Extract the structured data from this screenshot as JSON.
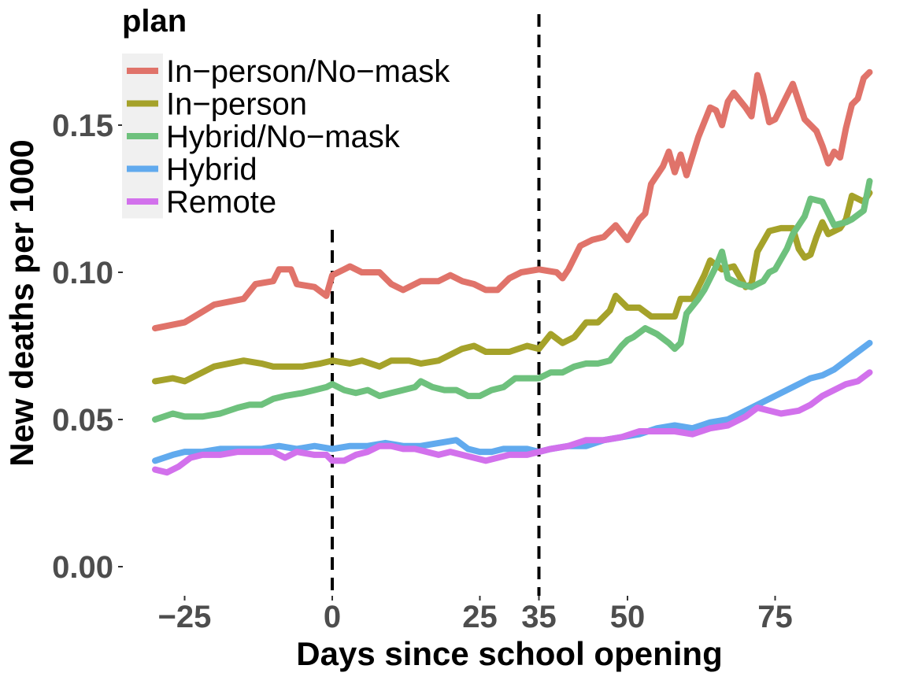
{
  "chart_data": {
    "type": "line",
    "title": "",
    "xlabel": "Days since school opening",
    "ylabel": "New deaths per 1000",
    "xlim": [
      -32,
      92
    ],
    "ylim": [
      -0.01,
      0.186
    ],
    "x_ticks": [
      -25,
      0,
      25,
      35,
      50,
      75
    ],
    "x_tick_labels": [
      "−25",
      "0",
      "25",
      "35",
      "50",
      "75"
    ],
    "y_ticks": [
      0.0,
      0.05,
      0.1,
      0.15
    ],
    "y_tick_labels": [
      "0.00",
      "0.05",
      "0.10",
      "0.15"
    ],
    "vlines": [
      0,
      35
    ],
    "grid": false,
    "legend": {
      "title": "plan",
      "placement": "top-left"
    },
    "series": [
      {
        "name": "In−person/No−mask",
        "color": "#e0736a",
        "points": [
          [
            -30,
            0.081
          ],
          [
            -25,
            0.083
          ],
          [
            -20,
            0.089
          ],
          [
            -15,
            0.091
          ],
          [
            -13,
            0.096
          ],
          [
            -10,
            0.097
          ],
          [
            -9,
            0.101
          ],
          [
            -7,
            0.101
          ],
          [
            -6,
            0.096
          ],
          [
            -3,
            0.095
          ],
          [
            -1,
            0.092
          ],
          [
            0,
            0.099
          ],
          [
            2,
            0.101
          ],
          [
            3,
            0.102
          ],
          [
            5,
            0.1
          ],
          [
            8,
            0.1
          ],
          [
            10,
            0.096
          ],
          [
            12,
            0.094
          ],
          [
            15,
            0.097
          ],
          [
            18,
            0.097
          ],
          [
            20,
            0.099
          ],
          [
            22,
            0.097
          ],
          [
            24,
            0.096
          ],
          [
            26,
            0.094
          ],
          [
            28,
            0.094
          ],
          [
            30,
            0.098
          ],
          [
            32,
            0.1
          ],
          [
            35,
            0.101
          ],
          [
            38,
            0.1
          ],
          [
            39,
            0.098
          ],
          [
            40,
            0.101
          ],
          [
            42,
            0.109
          ],
          [
            44,
            0.111
          ],
          [
            46,
            0.112
          ],
          [
            48,
            0.116
          ],
          [
            50,
            0.111
          ],
          [
            52,
            0.118
          ],
          [
            53,
            0.12
          ],
          [
            54,
            0.13
          ],
          [
            56,
            0.136
          ],
          [
            57,
            0.141
          ],
          [
            58,
            0.134
          ],
          [
            59,
            0.14
          ],
          [
            60,
            0.133
          ],
          [
            62,
            0.146
          ],
          [
            64,
            0.156
          ],
          [
            65,
            0.155
          ],
          [
            66,
            0.15
          ],
          [
            67,
            0.158
          ],
          [
            68,
            0.161
          ],
          [
            70,
            0.156
          ],
          [
            71,
            0.153
          ],
          [
            72,
            0.167
          ],
          [
            73,
            0.16
          ],
          [
            74,
            0.151
          ],
          [
            75,
            0.152
          ],
          [
            77,
            0.16
          ],
          [
            78,
            0.164
          ],
          [
            79,
            0.158
          ],
          [
            80,
            0.152
          ],
          [
            82,
            0.148
          ],
          [
            83,
            0.143
          ],
          [
            84,
            0.137
          ],
          [
            85,
            0.141
          ],
          [
            86,
            0.139
          ],
          [
            87,
            0.149
          ],
          [
            88,
            0.157
          ],
          [
            89,
            0.159
          ],
          [
            90,
            0.166
          ],
          [
            91,
            0.168
          ]
        ]
      },
      {
        "name": "In−person",
        "color": "#a5a22a",
        "points": [
          [
            -30,
            0.063
          ],
          [
            -27,
            0.064
          ],
          [
            -25,
            0.063
          ],
          [
            -22,
            0.066
          ],
          [
            -20,
            0.068
          ],
          [
            -15,
            0.07
          ],
          [
            -12,
            0.069
          ],
          [
            -10,
            0.068
          ],
          [
            -5,
            0.068
          ],
          [
            -2,
            0.069
          ],
          [
            0,
            0.07
          ],
          [
            3,
            0.069
          ],
          [
            5,
            0.07
          ],
          [
            8,
            0.068
          ],
          [
            10,
            0.07
          ],
          [
            13,
            0.07
          ],
          [
            15,
            0.069
          ],
          [
            18,
            0.07
          ],
          [
            20,
            0.072
          ],
          [
            22,
            0.074
          ],
          [
            24,
            0.075
          ],
          [
            26,
            0.073
          ],
          [
            28,
            0.073
          ],
          [
            30,
            0.073
          ],
          [
            33,
            0.075
          ],
          [
            35,
            0.074
          ],
          [
            37,
            0.079
          ],
          [
            39,
            0.076
          ],
          [
            41,
            0.078
          ],
          [
            43,
            0.083
          ],
          [
            45,
            0.083
          ],
          [
            47,
            0.087
          ],
          [
            48,
            0.092
          ],
          [
            50,
            0.088
          ],
          [
            52,
            0.088
          ],
          [
            54,
            0.085
          ],
          [
            56,
            0.085
          ],
          [
            58,
            0.085
          ],
          [
            59,
            0.091
          ],
          [
            61,
            0.091
          ],
          [
            63,
            0.099
          ],
          [
            64,
            0.104
          ],
          [
            66,
            0.101
          ],
          [
            68,
            0.102
          ],
          [
            70,
            0.095
          ],
          [
            71,
            0.096
          ],
          [
            72,
            0.107
          ],
          [
            74,
            0.114
          ],
          [
            76,
            0.115
          ],
          [
            78,
            0.115
          ],
          [
            79,
            0.108
          ],
          [
            80,
            0.105
          ],
          [
            81,
            0.106
          ],
          [
            82,
            0.112
          ],
          [
            83,
            0.117
          ],
          [
            84,
            0.113
          ],
          [
            86,
            0.115
          ],
          [
            87,
            0.118
          ],
          [
            88,
            0.126
          ],
          [
            90,
            0.124
          ],
          [
            91,
            0.127
          ]
        ]
      },
      {
        "name": "Hybrid/No−mask",
        "color": "#6ec17d",
        "points": [
          [
            -30,
            0.05
          ],
          [
            -27,
            0.052
          ],
          [
            -25,
            0.051
          ],
          [
            -22,
            0.051
          ],
          [
            -19,
            0.052
          ],
          [
            -16,
            0.054
          ],
          [
            -14,
            0.055
          ],
          [
            -12,
            0.055
          ],
          [
            -10,
            0.057
          ],
          [
            -8,
            0.058
          ],
          [
            -5,
            0.059
          ],
          [
            -3,
            0.06
          ],
          [
            -1,
            0.061
          ],
          [
            0,
            0.062
          ],
          [
            2,
            0.06
          ],
          [
            4,
            0.059
          ],
          [
            6,
            0.06
          ],
          [
            8,
            0.058
          ],
          [
            10,
            0.059
          ],
          [
            12,
            0.06
          ],
          [
            14,
            0.061
          ],
          [
            15,
            0.063
          ],
          [
            17,
            0.061
          ],
          [
            19,
            0.06
          ],
          [
            21,
            0.06
          ],
          [
            23,
            0.058
          ],
          [
            25,
            0.058
          ],
          [
            27,
            0.06
          ],
          [
            29,
            0.061
          ],
          [
            31,
            0.064
          ],
          [
            33,
            0.064
          ],
          [
            35,
            0.064
          ],
          [
            37,
            0.066
          ],
          [
            39,
            0.066
          ],
          [
            41,
            0.068
          ],
          [
            43,
            0.069
          ],
          [
            45,
            0.069
          ],
          [
            47,
            0.07
          ],
          [
            49,
            0.075
          ],
          [
            50,
            0.077
          ],
          [
            51,
            0.078
          ],
          [
            53,
            0.081
          ],
          [
            55,
            0.079
          ],
          [
            57,
            0.076
          ],
          [
            58,
            0.074
          ],
          [
            59,
            0.076
          ],
          [
            60,
            0.086
          ],
          [
            62,
            0.091
          ],
          [
            63,
            0.094
          ],
          [
            65,
            0.102
          ],
          [
            66,
            0.107
          ],
          [
            67,
            0.098
          ],
          [
            69,
            0.096
          ],
          [
            71,
            0.095
          ],
          [
            73,
            0.097
          ],
          [
            74,
            0.1
          ],
          [
            75,
            0.101
          ],
          [
            77,
            0.108
          ],
          [
            78,
            0.113
          ],
          [
            80,
            0.119
          ],
          [
            81,
            0.125
          ],
          [
            83,
            0.124
          ],
          [
            84,
            0.12
          ],
          [
            85,
            0.116
          ],
          [
            87,
            0.117
          ],
          [
            88,
            0.118
          ],
          [
            90,
            0.121
          ],
          [
            91,
            0.131
          ]
        ]
      },
      {
        "name": "Hybrid",
        "color": "#61aaee",
        "points": [
          [
            -30,
            0.036
          ],
          [
            -27,
            0.038
          ],
          [
            -25,
            0.039
          ],
          [
            -22,
            0.039
          ],
          [
            -19,
            0.04
          ],
          [
            -15,
            0.04
          ],
          [
            -12,
            0.04
          ],
          [
            -9,
            0.041
          ],
          [
            -6,
            0.04
          ],
          [
            -3,
            0.041
          ],
          [
            0,
            0.04
          ],
          [
            3,
            0.041
          ],
          [
            6,
            0.041
          ],
          [
            9,
            0.042
          ],
          [
            12,
            0.041
          ],
          [
            15,
            0.041
          ],
          [
            18,
            0.042
          ],
          [
            21,
            0.043
          ],
          [
            23,
            0.04
          ],
          [
            25,
            0.039
          ],
          [
            27,
            0.039
          ],
          [
            29,
            0.04
          ],
          [
            31,
            0.04
          ],
          [
            33,
            0.04
          ],
          [
            35,
            0.039
          ],
          [
            37,
            0.04
          ],
          [
            40,
            0.041
          ],
          [
            43,
            0.041
          ],
          [
            46,
            0.043
          ],
          [
            49,
            0.044
          ],
          [
            52,
            0.045
          ],
          [
            55,
            0.047
          ],
          [
            58,
            0.048
          ],
          [
            61,
            0.047
          ],
          [
            64,
            0.049
          ],
          [
            67,
            0.05
          ],
          [
            70,
            0.053
          ],
          [
            73,
            0.056
          ],
          [
            75,
            0.058
          ],
          [
            77,
            0.06
          ],
          [
            79,
            0.062
          ],
          [
            81,
            0.064
          ],
          [
            83,
            0.065
          ],
          [
            85,
            0.067
          ],
          [
            87,
            0.07
          ],
          [
            89,
            0.073
          ],
          [
            91,
            0.076
          ]
        ]
      },
      {
        "name": "Remote",
        "color": "#d271ec",
        "points": [
          [
            -30,
            0.033
          ],
          [
            -28,
            0.032
          ],
          [
            -26,
            0.034
          ],
          [
            -24,
            0.037
          ],
          [
            -22,
            0.038
          ],
          [
            -19,
            0.038
          ],
          [
            -16,
            0.039
          ],
          [
            -13,
            0.039
          ],
          [
            -10,
            0.039
          ],
          [
            -8,
            0.037
          ],
          [
            -6,
            0.039
          ],
          [
            -3,
            0.038
          ],
          [
            -1,
            0.038
          ],
          [
            0,
            0.036
          ],
          [
            2,
            0.036
          ],
          [
            4,
            0.038
          ],
          [
            6,
            0.039
          ],
          [
            8,
            0.041
          ],
          [
            10,
            0.041
          ],
          [
            12,
            0.04
          ],
          [
            14,
            0.04
          ],
          [
            16,
            0.039
          ],
          [
            18,
            0.038
          ],
          [
            20,
            0.039
          ],
          [
            22,
            0.038
          ],
          [
            24,
            0.037
          ],
          [
            26,
            0.036
          ],
          [
            28,
            0.037
          ],
          [
            30,
            0.038
          ],
          [
            33,
            0.038
          ],
          [
            35,
            0.039
          ],
          [
            37,
            0.04
          ],
          [
            40,
            0.041
          ],
          [
            43,
            0.043
          ],
          [
            46,
            0.043
          ],
          [
            49,
            0.044
          ],
          [
            52,
            0.046
          ],
          [
            55,
            0.046
          ],
          [
            58,
            0.046
          ],
          [
            61,
            0.045
          ],
          [
            64,
            0.047
          ],
          [
            67,
            0.048
          ],
          [
            70,
            0.051
          ],
          [
            72,
            0.054
          ],
          [
            74,
            0.053
          ],
          [
            76,
            0.052
          ],
          [
            79,
            0.053
          ],
          [
            81,
            0.055
          ],
          [
            83,
            0.058
          ],
          [
            85,
            0.06
          ],
          [
            87,
            0.062
          ],
          [
            89,
            0.063
          ],
          [
            91,
            0.066
          ]
        ]
      }
    ]
  }
}
